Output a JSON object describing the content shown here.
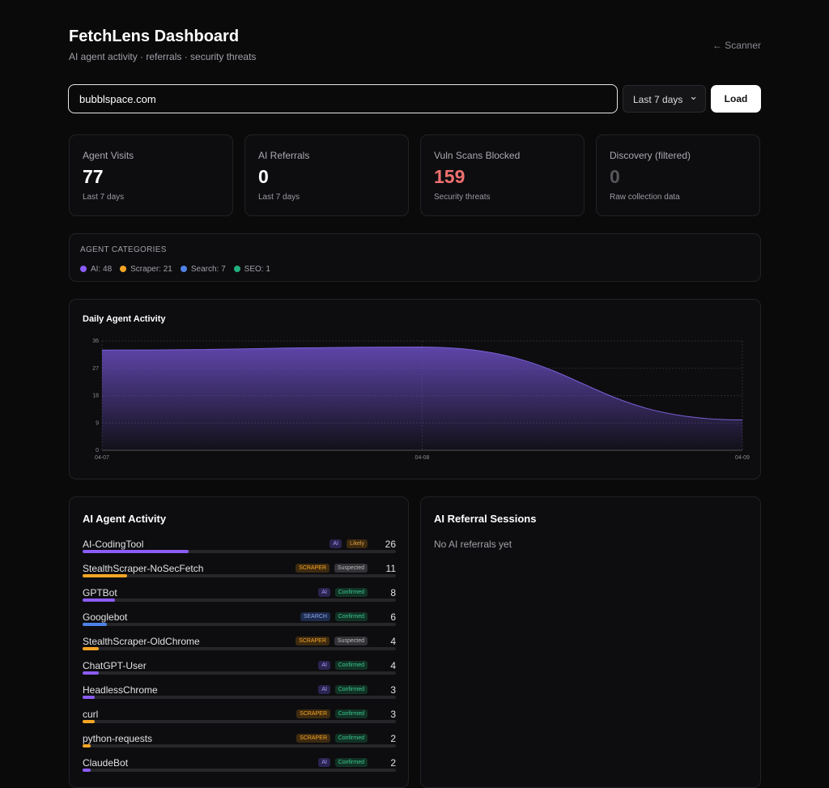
{
  "header": {
    "title": "FetchLens Dashboard",
    "subtitle": "AI agent activity · referrals · security threats",
    "back_link": "← Scanner"
  },
  "search": {
    "value": "bubblspace.com",
    "range": "Last 7 days",
    "button": "Load"
  },
  "stats": [
    {
      "label": "Agent Visits",
      "value": 77,
      "note": "Last 7 days",
      "color": "#ffffff"
    },
    {
      "label": "AI Referrals",
      "value": 0,
      "note": "Last 7 days",
      "color": "#ffffff"
    },
    {
      "label": "Vuln Scans Blocked",
      "value": 159,
      "note": "Security threats",
      "color": "#f07070"
    },
    {
      "label": "Discovery (filtered)",
      "value": 0,
      "note": "Raw collection data",
      "color": "#55555a"
    }
  ],
  "categories": {
    "title": "AGENT CATEGORIES",
    "items": [
      {
        "label": "AI: 48",
        "color": "#8b5cf6"
      },
      {
        "label": "Scraper: 21",
        "color": "#f5a524"
      },
      {
        "label": "Search: 7",
        "color": "#4f82e6"
      },
      {
        "label": "SEO: 1",
        "color": "#22b07d"
      }
    ]
  },
  "chart_data": {
    "type": "area",
    "title": "Daily Agent Activity",
    "x": [
      "04-07",
      "04-08",
      "04-09"
    ],
    "values": [
      33,
      34,
      10
    ],
    "color": "#6b4fc4",
    "ylim": [
      0,
      36
    ],
    "yticks": [
      0,
      9,
      18,
      27,
      36
    ],
    "grid": true
  },
  "agents": {
    "title": "AI Agent Activity",
    "rows": [
      {
        "name": "AI-CodingTool",
        "type": "AI",
        "status": "Likely",
        "count": 26
      },
      {
        "name": "StealthScraper-NoSecFetch",
        "type": "SCRAPER",
        "status": "Suspected",
        "count": 11
      },
      {
        "name": "GPTBot",
        "type": "AI",
        "status": "Confirmed",
        "count": 8
      },
      {
        "name": "Googlebot",
        "type": "SEARCH",
        "status": "Confirmed",
        "count": 6
      },
      {
        "name": "StealthScraper-OldChrome",
        "type": "SCRAPER",
        "status": "Suspected",
        "count": 4
      },
      {
        "name": "ChatGPT-User",
        "type": "AI",
        "status": "Confirmed",
        "count": 4
      },
      {
        "name": "HeadlessChrome",
        "type": "AI",
        "status": "Confirmed",
        "count": 3
      },
      {
        "name": "curl",
        "type": "SCRAPER",
        "status": "Confirmed",
        "count": 3
      },
      {
        "name": "python-requests",
        "type": "SCRAPER",
        "status": "Confirmed",
        "count": 2
      },
      {
        "name": "ClaudeBot",
        "type": "AI",
        "status": "Confirmed",
        "count": 2
      }
    ]
  },
  "referrals": {
    "title": "AI Referral Sessions",
    "empty": "No AI referrals yet"
  }
}
